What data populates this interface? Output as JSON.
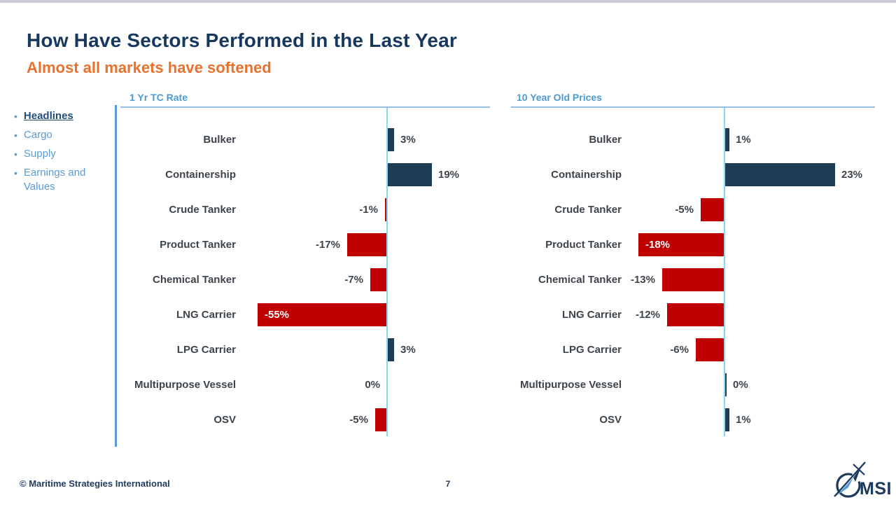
{
  "slide": {
    "title": "How Have Sectors Performed in the Last Year",
    "subtitle": "Almost all markets have softened",
    "footer_copyright": "© Maritime Strategies International",
    "page_number": "7",
    "logo_text": "MSI"
  },
  "sidebar": {
    "items": [
      {
        "label": "Headlines",
        "active": true
      },
      {
        "label": "Cargo",
        "active": false
      },
      {
        "label": "Supply",
        "active": false
      },
      {
        "label": "Earnings and Values",
        "active": false
      }
    ]
  },
  "colors": {
    "title_navy": "#17375e",
    "subtitle_orange": "#e8712d",
    "accent_blue": "#5b9bd5",
    "header_blue": "#4a9ad3",
    "axis_cyan": "#86d8f3",
    "bar_navy": "#1f3c55",
    "bar_red": "#c00000",
    "label_gray": "#3d444c"
  },
  "chart_data": [
    {
      "type": "bar",
      "orientation": "horizontal",
      "title": "1 Yr TC Rate",
      "unit": "%",
      "categories": [
        "Bulker",
        "Containership",
        "Crude Tanker",
        "Product Tanker",
        "Chemical Tanker",
        "LNG Carrier",
        "LPG Carrier",
        "Multipurpose Vessel",
        "OSV"
      ],
      "values": [
        3,
        19,
        -1,
        -17,
        -7,
        -55,
        3,
        0,
        -5
      ],
      "value_labels": [
        "3%",
        "19%",
        "-1%",
        "-17%",
        "-7%",
        "-55%",
        "3%",
        "0%",
        "-5%"
      ],
      "positive_color": "#1f3c55",
      "negative_color": "#c00000",
      "zero_line": true,
      "zero_label_side": "left",
      "grid": false,
      "legend": false,
      "xlim": [
        -64,
        44
      ]
    },
    {
      "type": "bar",
      "orientation": "horizontal",
      "title": "10 Year Old Prices",
      "unit": "%",
      "categories": [
        "Bulker",
        "Containership",
        "Crude Tanker",
        "Product Tanker",
        "Chemical Tanker",
        "LNG Carrier",
        "LPG Carrier",
        "Multipurpose Vessel",
        "OSV"
      ],
      "values": [
        1,
        23,
        -5,
        -18,
        -13,
        -12,
        -6,
        0,
        1
      ],
      "value_labels": [
        "1%",
        "23%",
        "-5%",
        "-18%",
        "-13%",
        "-12%",
        "-6%",
        "0%",
        "1%"
      ],
      "positive_color": "#1f3c55",
      "negative_color": "#c00000",
      "zero_line": true,
      "zero_label_side": "right",
      "grid": false,
      "legend": false,
      "xlim": [
        -45,
        32
      ]
    }
  ]
}
